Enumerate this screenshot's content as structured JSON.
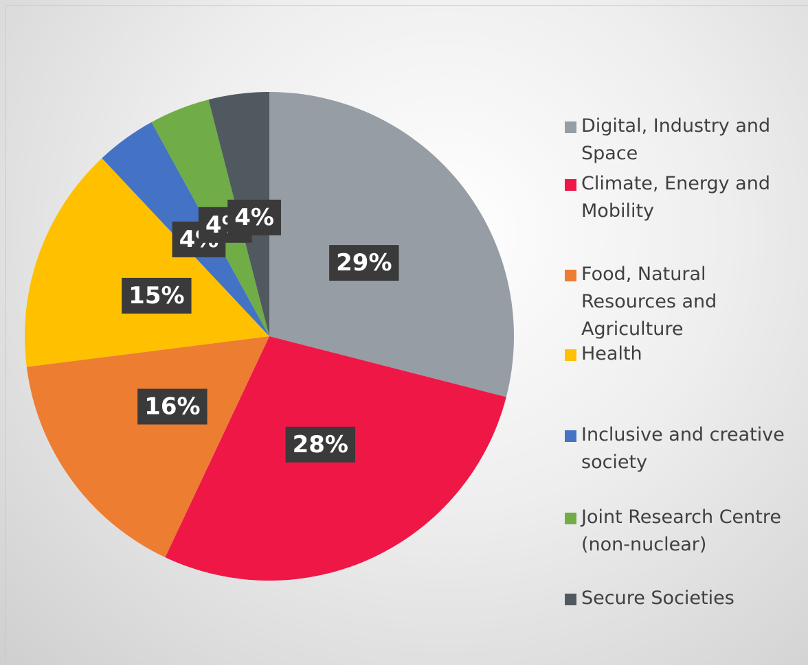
{
  "chart_data": {
    "type": "pie",
    "categories": [
      "Digital, Industry and Space",
      "Climate, Energy and Mobility",
      "Food, Natural Resources and Agriculture",
      "Health",
      "Inclusive and creative society",
      "Joint Research Centre (non-nuclear)",
      "Secure Societies"
    ],
    "values": [
      29,
      28,
      16,
      15,
      4,
      4,
      4
    ],
    "colors": [
      "#969da4",
      "#ef1746",
      "#ed7d31",
      "#ffc000",
      "#4472c4",
      "#70ad47",
      "#515960"
    ],
    "legend": "right"
  }
}
